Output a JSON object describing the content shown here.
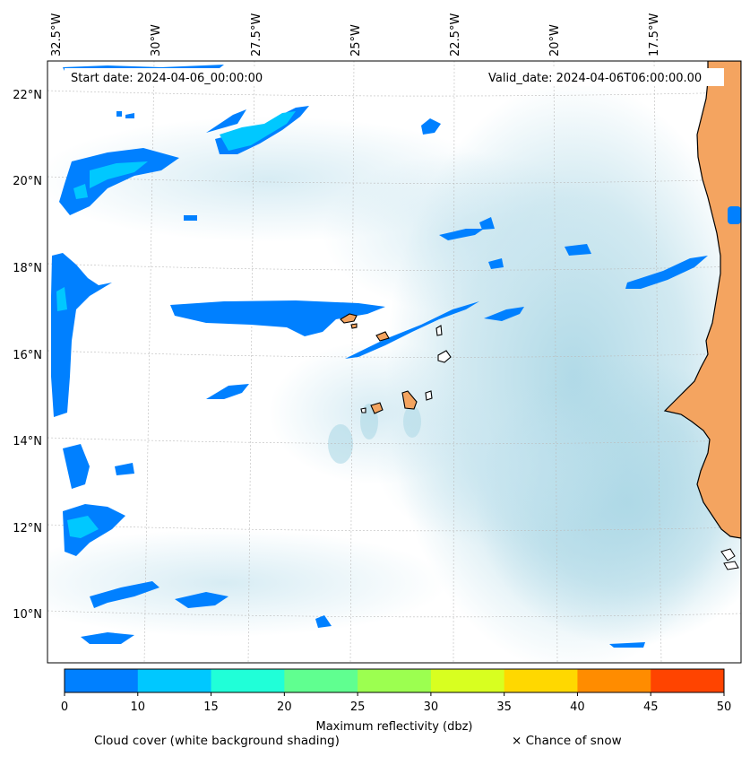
{
  "map": {
    "start_date": "Start date: 2024-04-06_00:00:00",
    "valid_date": "Valid_date: 2024-04-06T06:00:00.00",
    "lon_labels": [
      "32.5°W",
      "30°W",
      "27.5°W",
      "25°W",
      "22.5°W",
      "20°W",
      "17.5°W"
    ],
    "lat_labels": [
      "22°N",
      "20°N",
      "18°N",
      "16°N",
      "14°N",
      "12°N",
      "10°N"
    ],
    "colors": {
      "land": "#f4a460",
      "cloud": "#add8e6",
      "refl_0_10": "#0080ff",
      "refl_10_15": "#00c8ff"
    }
  },
  "colorbar": {
    "title": "Maximum reflectivity (dbz)",
    "ticks": [
      "0",
      "10",
      "15",
      "20",
      "25",
      "30",
      "35",
      "40",
      "45",
      "50"
    ],
    "colors": [
      "#0080ff",
      "#00c8ff",
      "#20ffd8",
      "#60ff90",
      "#9cff50",
      "#d8ff20",
      "#ffd800",
      "#ff8c00",
      "#ff4400"
    ]
  },
  "footer": {
    "cloud_note": "Cloud cover (white background shading)",
    "snow_note": "× Chance of snow"
  }
}
